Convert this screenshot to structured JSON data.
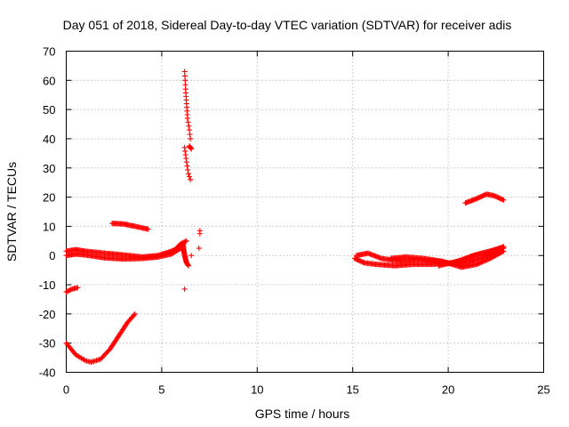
{
  "chart_data": {
    "type": "scatter",
    "title": "Day 051 of 2018, Sidereal Day-to-day VTEC variation (SDTVAR) for receiver adis",
    "xlabel": "GPS time / hours",
    "ylabel": "SDTVAR / TECUs",
    "xlim": [
      0,
      25
    ],
    "ylim": [
      -40,
      70
    ],
    "xticks": [
      "0",
      "5",
      "10",
      "15",
      "20",
      "25"
    ],
    "yticks": [
      "-40",
      "-30",
      "-20",
      "-10",
      "0",
      "10",
      "20",
      "30",
      "40",
      "50",
      "60",
      "70"
    ],
    "grid": true,
    "marker": "plus",
    "color": "#ff0000",
    "series": [
      {
        "name": "trace-low-dip",
        "step": 0.08,
        "x": [
          0.0,
          0.5,
          1.0,
          1.3,
          1.8,
          2.3,
          2.8,
          3.2,
          3.6
        ],
        "y": [
          -30,
          -34,
          -36,
          -36.5,
          -35.5,
          -32,
          -27,
          -23,
          -20
        ]
      },
      {
        "name": "trace-minus12",
        "step": 0.06,
        "x": [
          0.0,
          0.3,
          0.6
        ],
        "y": [
          -12.5,
          -11.5,
          -11
        ]
      },
      {
        "name": "trace-near-zero-a",
        "step": 0.06,
        "x": [
          0.0,
          0.5,
          1.0,
          2.0,
          3.0,
          4.0,
          4.8,
          5.3,
          5.7,
          6.0,
          6.3
        ],
        "y": [
          1.5,
          2,
          1.5,
          0.8,
          0.2,
          -0.5,
          0,
          1,
          2,
          4,
          5
        ]
      },
      {
        "name": "trace-near-zero-b",
        "step": 0.06,
        "x": [
          0.0,
          0.5,
          1.0,
          2.0,
          3.0,
          4.0,
          4.8,
          5.5,
          6.0
        ],
        "y": [
          0,
          0.5,
          0.2,
          -0.8,
          -1.2,
          -1,
          -0.5,
          0.5,
          2.5
        ]
      },
      {
        "name": "trace-ten",
        "step": 0.06,
        "x": [
          2.4,
          3.0,
          3.6,
          4.3
        ],
        "y": [
          11,
          10.8,
          10,
          9
        ]
      },
      {
        "name": "trace-spike-upper",
        "step": 0.3,
        "x": [
          6.2,
          6.25,
          6.3,
          6.35,
          6.45,
          6.5
        ],
        "y": [
          63,
          57,
          52,
          47,
          43,
          40
        ]
      },
      {
        "name": "trace-spike-lower",
        "step": 0.3,
        "x": [
          6.2,
          6.3,
          6.4,
          6.5
        ],
        "y": [
          37,
          32,
          28,
          26
        ]
      },
      {
        "name": "trace-spike-mid",
        "step": 0.06,
        "x": [
          6.45,
          6.55
        ],
        "y": [
          37.5,
          36.5
        ]
      },
      {
        "name": "trace-pluses-low",
        "step": 0.06,
        "x": [
          6.1,
          6.2,
          6.3,
          6.4
        ],
        "y": [
          4,
          0,
          -2.5,
          -3.5
        ]
      },
      {
        "name": "trace-right-a",
        "step": 0.06,
        "x": [
          15.1,
          15.6,
          16.2,
          17.2,
          18.2,
          19.2,
          20.2,
          21.0,
          21.6,
          22.2,
          22.9
        ],
        "y": [
          -1,
          -2.5,
          -3,
          -3.5,
          -3,
          -3,
          -2.5,
          -1,
          0.5,
          1.5,
          2.5
        ]
      },
      {
        "name": "trace-right-b",
        "step": 0.06,
        "x": [
          15.2,
          15.8,
          16.5,
          17.5,
          18.5,
          19.5,
          20.5,
          21.2,
          21.9,
          22.5,
          22.9
        ],
        "y": [
          0,
          0.8,
          -1,
          -2,
          -1.5,
          -2,
          -3,
          -2,
          -0.5,
          1.5,
          3
        ]
      },
      {
        "name": "trace-right-c",
        "step": 0.06,
        "x": [
          17.0,
          17.8,
          18.7,
          19.7,
          20.7,
          21.5,
          22.2,
          22.9
        ],
        "y": [
          -1,
          -0.5,
          -1,
          -2,
          -4,
          -3,
          -1,
          1.5
        ]
      },
      {
        "name": "trace-right-d",
        "step": 0.06,
        "x": [
          19.5,
          20.5,
          21.3,
          22.2,
          22.9
        ],
        "y": [
          -3.5,
          -2,
          0,
          1.5,
          3
        ]
      },
      {
        "name": "trace-twenty",
        "step": 0.06,
        "x": [
          20.9,
          21.5,
          22.0,
          22.4,
          22.9
        ],
        "y": [
          18,
          19.5,
          21,
          20.5,
          19
        ]
      },
      {
        "name": "scattered",
        "step": 0,
        "x": [
          6.2,
          6.55,
          6.95,
          7.0,
          7.0
        ],
        "y": [
          -11.5,
          0,
          2.5,
          7.5,
          8.5
        ]
      }
    ]
  }
}
